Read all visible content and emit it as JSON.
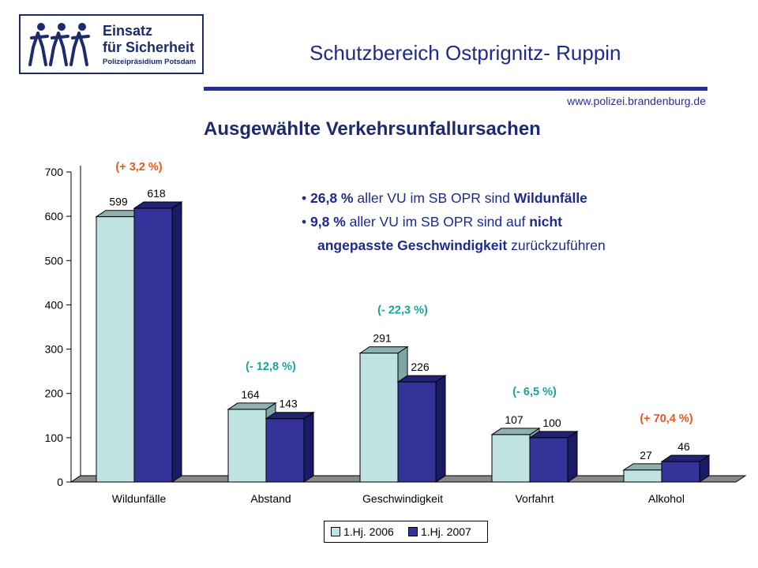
{
  "header": {
    "logo": {
      "line1": "Einsatz",
      "line2": "für Sicherheit",
      "line3": "Polizeipräsidium Potsdam"
    },
    "title": "Schutzbereich Ostprignitz- Ruppin",
    "website": "www.polizei.brandenburg.de"
  },
  "info": {
    "bullet1": {
      "value": "26,8 %",
      "text": " aller VU im SB OPR sind ",
      "bold": "Wildunfälle"
    },
    "bullet2": {
      "value": "9,8 %",
      "text": " aller VU im SB OPR sind auf ",
      "bold": "nicht",
      "bold2": "angepasste Geschwindigkeit",
      "tail": " zurückzuführen"
    }
  },
  "chart_data": {
    "type": "bar",
    "title": "Ausgewählte Verkehrsunfallursachen",
    "categories": [
      "Wildunfälle",
      "Abstand",
      "Geschwindigkeit",
      "Vorfahrt",
      "Alkohol"
    ],
    "series": [
      {
        "name": "1.Hj. 2006",
        "values": [
          599,
          164,
          291,
          107,
          27
        ],
        "color": "#bfe3e3"
      },
      {
        "name": "1.Hj. 2007",
        "values": [
          618,
          143,
          226,
          100,
          46
        ],
        "color": "#333399"
      }
    ],
    "changes": [
      "(+ 3,2 %)",
      "(- 12,8 %)",
      "(- 22,3 %)",
      "(- 6,5 %)",
      "(+ 70,4 %)"
    ],
    "change_colors": [
      "#e8571e",
      "#1aa39a",
      "#1aa39a",
      "#1aa39a",
      "#e8571e"
    ],
    "yticks": [
      0,
      100,
      200,
      300,
      400,
      500,
      600,
      700
    ],
    "ylim": [
      0,
      700
    ],
    "legend_position": "bottom"
  }
}
